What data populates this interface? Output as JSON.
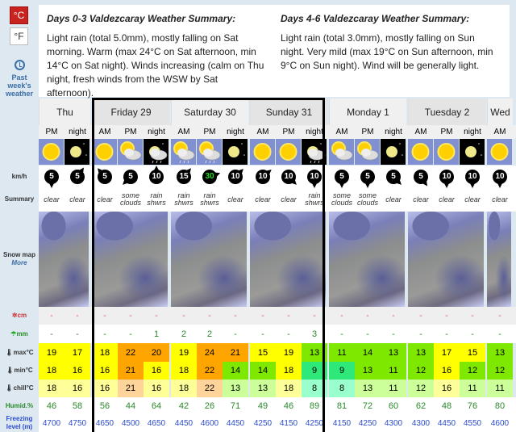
{
  "units": {
    "celsius": "°C",
    "fahrenheit": "°F",
    "active": "celsius"
  },
  "past_weather": {
    "line1": "Past",
    "line2": "week's",
    "line3": "weather"
  },
  "summary": [
    {
      "title": "Days 0-3 Valdezcaray Weather Summary:",
      "text": "Light rain (total 5.0mm), mostly falling on Sat morning. Warm (max 24°C on Sat afternoon, min 14°C on Sat night). Winds increasing (calm on Thu night, fresh winds from the WSW by Sat afternoon)."
    },
    {
      "title": "Days 4-6 Valdezcaray Weather Summary:",
      "text": "Light rain (total 3.0mm), mostly falling on Sun night. Very mild (max 19°C on Sun afternoon, min 9°C on Sun night). Wind will be generally light."
    }
  ],
  "labels": {
    "wind": "km/h",
    "summary": "Summary",
    "snow_map": "Snow map",
    "more": "More",
    "snow": "cm",
    "rain": "mm",
    "max": "max°C",
    "min": "min°C",
    "chill": "chill°C",
    "humid": "Humid.%",
    "freezing": "Freezing level (m)"
  },
  "colors": {
    "yellow": "#ffff00",
    "orange": "#ffa500",
    "green": "#7fe800",
    "teal": "#2ee87a",
    "lyellow": "#ffff99",
    "lorange": "#ffd49a",
    "lgreen": "#ccff99",
    "lteal": "#99ffcc",
    "high_wind": "#22dd22"
  },
  "days": [
    {
      "name": "Thu",
      "cols": 2
    },
    {
      "name": "Friday 29",
      "cols": 3
    },
    {
      "name": "Saturday 30",
      "cols": 3
    },
    {
      "name": "Sunday 31",
      "cols": 3
    },
    {
      "name": "Monday 1",
      "cols": 3
    },
    {
      "name": "Tuesday 2",
      "cols": 3
    },
    {
      "name": "Wed",
      "cols": 1
    }
  ],
  "columns": [
    {
      "p": "PM",
      "icon": "sun",
      "wind": "5",
      "wdir": 180,
      "sum": "clear",
      "snow": "-",
      "rain": "-",
      "max": "19",
      "maxc": "yellow",
      "min": "18",
      "minc": "yellow",
      "chill": "18",
      "chc": "lyellow",
      "hum": "46",
      "frz": "4700"
    },
    {
      "p": "night",
      "icon": "moon",
      "wind": "5",
      "wdir": 35,
      "sum": "clear",
      "snow": "-",
      "rain": "-",
      "max": "17",
      "maxc": "yellow",
      "min": "16",
      "minc": "yellow",
      "chill": "16",
      "chc": "lyellow",
      "hum": "58",
      "frz": "4750"
    },
    {
      "p": "AM",
      "icon": "sun",
      "wind": "5",
      "wdir": -40,
      "sum": "clear",
      "snow": "-",
      "rain": "-",
      "max": "18",
      "maxc": "yellow",
      "min": "16",
      "minc": "yellow",
      "chill": "16",
      "chc": "lyellow",
      "hum": "56",
      "frz": "4650"
    },
    {
      "p": "PM",
      "icon": "sun-cloud",
      "wind": "5",
      "wdir": 225,
      "sum": "some clouds",
      "snow": "-",
      "rain": "-",
      "max": "22",
      "maxc": "orange",
      "min": "21",
      "minc": "orange",
      "chill": "21",
      "chc": "lorange",
      "hum": "44",
      "frz": "4500"
    },
    {
      "p": "night",
      "icon": "moon-cloud-rain",
      "wind": "10",
      "wdir": 0,
      "sum": "rain shwrs",
      "snow": "-",
      "rain": "1",
      "max": "20",
      "maxc": "orange",
      "min": "16",
      "minc": "yellow",
      "chill": "16",
      "chc": "lyellow",
      "hum": "64",
      "frz": "4650"
    },
    {
      "p": "AM",
      "icon": "sun-cloud-rain",
      "wind": "15",
      "wdir": 40,
      "sum": "rain shwrs",
      "snow": "-",
      "rain": "2",
      "max": "19",
      "maxc": "yellow",
      "min": "18",
      "minc": "yellow",
      "chill": "18",
      "chc": "lyellow",
      "hum": "42",
      "frz": "4450"
    },
    {
      "p": "PM",
      "icon": "sun-cloud-rain",
      "wind": "30",
      "wdir": 70,
      "sum": "rain shwrs",
      "snow": "-",
      "rain": "2",
      "max": "24",
      "maxc": "orange",
      "min": "22",
      "minc": "orange",
      "chill": "22",
      "chc": "lorange",
      "hum": "26",
      "frz": "4600"
    },
    {
      "p": "night",
      "icon": "moon",
      "wind": "10",
      "wdir": 45,
      "sum": "clear",
      "snow": "-",
      "rain": "-",
      "max": "21",
      "maxc": "orange",
      "min": "14",
      "minc": "green",
      "chill": "13",
      "chc": "lgreen",
      "hum": "71",
      "frz": "4450"
    },
    {
      "p": "AM",
      "icon": "sun",
      "wind": "10",
      "wdir": 50,
      "sum": "clear",
      "snow": "-",
      "rain": "-",
      "max": "15",
      "maxc": "yellow",
      "min": "14",
      "minc": "green",
      "chill": "13",
      "chc": "lgreen",
      "hum": "49",
      "frz": "4250"
    },
    {
      "p": "PM",
      "icon": "sun",
      "wind": "10",
      "wdir": 135,
      "sum": "clear",
      "snow": "-",
      "rain": "-",
      "max": "19",
      "maxc": "yellow",
      "min": "18",
      "minc": "yellow",
      "chill": "18",
      "chc": "lyellow",
      "hum": "46",
      "frz": "4150"
    },
    {
      "p": "night",
      "icon": "moon-cloud-rain",
      "wind": "10",
      "wdir": 180,
      "sum": "rain shwrs",
      "snow": "-",
      "rain": "3",
      "max": "13",
      "maxc": "green",
      "min": "9",
      "minc": "teal",
      "chill": "8",
      "chc": "lteal",
      "hum": "89",
      "frz": "4250"
    },
    {
      "p": "AM",
      "icon": "sun-cloud",
      "wind": "5",
      "wdir": 180,
      "sum": "some clouds",
      "snow": "-",
      "rain": "-",
      "max": "11",
      "maxc": "green",
      "min": "9",
      "minc": "teal",
      "chill": "8",
      "chc": "lteal",
      "hum": "81",
      "frz": "4150"
    },
    {
      "p": "PM",
      "icon": "sun-cloud",
      "wind": "5",
      "wdir": 180,
      "sum": "some clouds",
      "snow": "-",
      "rain": "-",
      "max": "14",
      "maxc": "green",
      "min": "13",
      "minc": "green",
      "chill": "13",
      "chc": "lgreen",
      "hum": "72",
      "frz": "4250"
    },
    {
      "p": "night",
      "icon": "moon",
      "wind": "5",
      "wdir": 135,
      "sum": "clear",
      "snow": "-",
      "rain": "-",
      "max": "13",
      "maxc": "green",
      "min": "11",
      "minc": "green",
      "chill": "11",
      "chc": "lgreen",
      "hum": "60",
      "frz": "4300"
    },
    {
      "p": "AM",
      "icon": "sun",
      "wind": "5",
      "wdir": 145,
      "sum": "clear",
      "snow": "-",
      "rain": "-",
      "max": "13",
      "maxc": "green",
      "min": "12",
      "minc": "green",
      "chill": "12",
      "chc": "lgreen",
      "hum": "62",
      "frz": "4300"
    },
    {
      "p": "PM",
      "icon": "sun",
      "wind": "10",
      "wdir": 180,
      "sum": "clear",
      "snow": "-",
      "rain": "-",
      "max": "17",
      "maxc": "yellow",
      "min": "16",
      "minc": "yellow",
      "chill": "16",
      "chc": "lyellow",
      "hum": "48",
      "frz": "4450"
    },
    {
      "p": "night",
      "icon": "moon",
      "wind": "10",
      "wdir": 180,
      "sum": "clear",
      "snow": "-",
      "rain": "-",
      "max": "15",
      "maxc": "yellow",
      "min": "12",
      "minc": "green",
      "chill": "11",
      "chc": "lgreen",
      "hum": "76",
      "frz": "4550"
    },
    {
      "p": "AM",
      "icon": "sun",
      "wind": "10",
      "wdir": 180,
      "sum": "clear",
      "snow": "-",
      "rain": "-",
      "max": "13",
      "maxc": "green",
      "min": "12",
      "minc": "green",
      "chill": "11",
      "chc": "lgreen",
      "hum": "80",
      "frz": "4600"
    }
  ]
}
